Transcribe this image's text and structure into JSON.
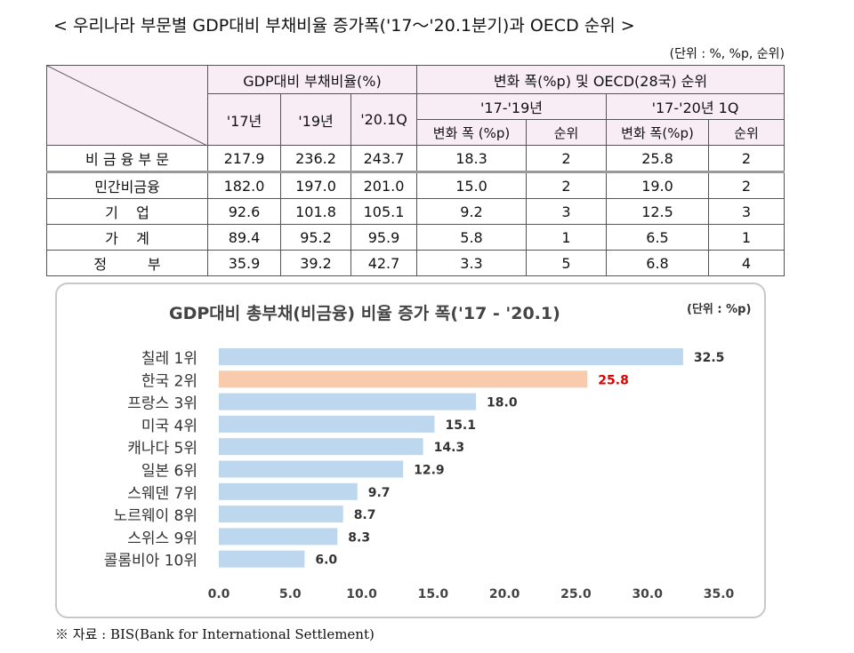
{
  "title": "< 우리나라 부문별 GDP대비 부채비율 증가폭('17～'20.1분기)과 OECD 순위 >",
  "unit": "(단위 : %, %p, 순위)",
  "table": {
    "h1": [
      "GDP대비 부채비율(%)",
      "변화 폭(%p) 및 OECD(28국) 순위"
    ],
    "h2": [
      "'17년",
      "'19년",
      "'20.1Q",
      "'17-'19년",
      "'17-'20년 1Q"
    ],
    "h3": [
      "변화 폭 (%p)",
      "순위",
      "변화 폭(%p)",
      "순위"
    ],
    "rows": [
      {
        "label": "비 금 융 부 문",
        "cells": [
          "217.9",
          "236.2",
          "243.7",
          "18.3",
          "2",
          "25.8",
          "2"
        ]
      },
      {
        "label": "민간비금융",
        "cells": [
          "182.0",
          "197.0",
          "201.0",
          "15.0",
          "2",
          "19.0",
          "2"
        ]
      },
      {
        "label": "기    업",
        "cells": [
          "92.6",
          "101.8",
          "105.1",
          "9.2",
          "3",
          "12.5",
          "3"
        ]
      },
      {
        "label": "가    계",
        "cells": [
          "89.4",
          "95.2",
          "95.9",
          "5.8",
          "1",
          "6.5",
          "1"
        ]
      },
      {
        "label": "정         부",
        "cells": [
          "35.9",
          "39.2",
          "42.7",
          "3.3",
          "5",
          "6.8",
          "4"
        ]
      }
    ]
  },
  "chart_data": {
    "type": "bar",
    "orientation": "horizontal",
    "title": "GDP대비 총부채(비금융) 비율 증가 폭('17 - '20.1)",
    "unit_note": "(단위 : %p)",
    "categories": [
      "칠레 1위",
      "한국 2위",
      "프랑스 3위",
      "미국 4위",
      "캐나다 5위",
      "일본 6위",
      "스웨덴 7위",
      "노르웨이 8위",
      "스위스 9위",
      "콜롬비아 10위"
    ],
    "values": [
      32.5,
      25.8,
      18.0,
      15.1,
      14.3,
      12.9,
      9.7,
      8.7,
      8.3,
      6.0
    ],
    "value_labels": [
      "32.5",
      "25.8",
      "18.0",
      "15.1",
      "14.3",
      "12.9",
      "9.7",
      "8.7",
      "8.3",
      "6.0"
    ],
    "xlim": [
      0,
      35
    ],
    "xticks": [
      "0.0",
      "5.0",
      "10.0",
      "15.0",
      "20.0",
      "25.0",
      "30.0",
      "35.0"
    ],
    "bar_color": "#bdd7ee",
    "highlight_color": "#f8cbad",
    "highlight_label_color": "#e00000",
    "highlight_index": 1,
    "grid": false
  },
  "source": "※ 자료 : BIS(Bank for International Settlement)"
}
